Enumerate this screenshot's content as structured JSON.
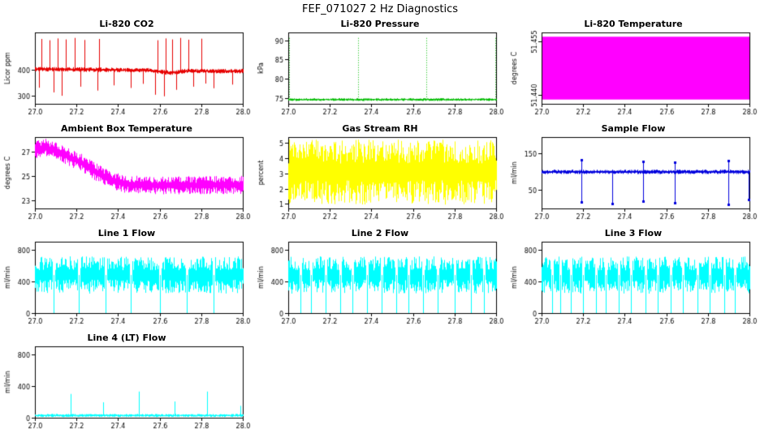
{
  "figure_title": "FEF_071027  2 Hz Diagnostics",
  "x_axis": {
    "lim": [
      27.0,
      28.0
    ],
    "ticks": [
      "27.0",
      "27.2",
      "27.4",
      "27.6",
      "27.8",
      "28.0"
    ]
  },
  "chart_data": [
    {
      "type": "line",
      "title": "Li-820 CO2",
      "ylabel": "Licor ppm",
      "color": "#e60000",
      "ylim": [
        270,
        545
      ],
      "yticks": [
        "300",
        "400"
      ],
      "series": {
        "trend": [
          [
            27.0,
            404
          ],
          [
            27.55,
            399
          ],
          [
            27.65,
            389
          ],
          [
            27.72,
            396
          ],
          [
            28.0,
            396
          ]
        ],
        "noise": 9,
        "spikes": [
          [
            27.03,
            520
          ],
          [
            27.07,
            515
          ],
          [
            27.11,
            522
          ],
          [
            27.15,
            518
          ],
          [
            27.19,
            524
          ],
          [
            27.24,
            516
          ],
          [
            27.31,
            520
          ],
          [
            27.59,
            515
          ],
          [
            27.63,
            522
          ],
          [
            27.66,
            518
          ],
          [
            27.7,
            524
          ],
          [
            27.74,
            517
          ],
          [
            27.8,
            521
          ],
          [
            27.02,
            332
          ],
          [
            27.09,
            314
          ],
          [
            27.13,
            301
          ],
          [
            27.22,
            336
          ],
          [
            27.3,
            321
          ],
          [
            27.38,
            341
          ],
          [
            27.46,
            331
          ],
          [
            27.52,
            347
          ],
          [
            27.58,
            305
          ],
          [
            27.62,
            299
          ],
          [
            27.68,
            324
          ],
          [
            27.76,
            336
          ],
          [
            27.82,
            348
          ],
          [
            27.86,
            330
          ],
          [
            27.95,
            344
          ]
        ]
      }
    },
    {
      "type": "line",
      "title": "Li-820 Pressure",
      "ylabel": "kPa",
      "color": "#00bb00",
      "ylim": [
        73.5,
        92
      ],
      "yticks": [
        "75",
        "80",
        "85",
        "90"
      ],
      "series": {
        "trend": [
          [
            27.0,
            74.6
          ]
        ],
        "noise": 0.35,
        "spike_dash": true,
        "spikes": [
          [
            27.005,
            91
          ],
          [
            27.335,
            91
          ],
          [
            27.665,
            91
          ],
          [
            27.995,
            91
          ]
        ]
      }
    },
    {
      "type": "line",
      "title": "Li-820 Temperature",
      "ylabel": "degrees C",
      "color": "#ff00ff",
      "ylim": [
        51.4375,
        51.4575
      ],
      "yticks": [
        "51.440",
        "51.455"
      ],
      "series": {
        "solid": true,
        "trend": [
          [
            27.0,
            51.4475
          ]
        ],
        "noise": 0.0088
      }
    },
    {
      "type": "line",
      "title": "Ambient Box Temperature",
      "ylabel": "degrees C",
      "color": "#ff00ff",
      "ylim": [
        22.3,
        28.2
      ],
      "yticks": [
        "23",
        "25",
        "27"
      ],
      "series": {
        "trend": [
          [
            27.0,
            27.2
          ],
          [
            27.05,
            27.35
          ],
          [
            27.12,
            26.9
          ],
          [
            27.22,
            26.1
          ],
          [
            27.32,
            25.0
          ],
          [
            27.42,
            24.35
          ],
          [
            27.55,
            24.2
          ],
          [
            28.0,
            24.25
          ]
        ],
        "noise": 0.75
      }
    },
    {
      "type": "line",
      "title": "Gas Stream RH",
      "ylabel": "percent",
      "color": "#ffff00",
      "ylim": [
        0.7,
        5.4
      ],
      "yticks": [
        "1",
        "2",
        "3",
        "4",
        "5"
      ],
      "series": {
        "trend": [
          [
            27.0,
            3.1
          ]
        ],
        "noise": 2.15
      }
    },
    {
      "type": "line",
      "title": "Sample Flow",
      "ylabel": "ml/min",
      "color": "#0000dd",
      "ylim": [
        0,
        195
      ],
      "yticks": [
        "50",
        "150"
      ],
      "series": {
        "trend": [
          [
            27.0,
            100
          ]
        ],
        "noise": 6,
        "markers": true,
        "spikes": [
          [
            27.19,
            18
          ],
          [
            27.34,
            14
          ],
          [
            27.49,
            20
          ],
          [
            27.64,
            15
          ],
          [
            27.9,
            12
          ],
          [
            27.995,
            24
          ],
          [
            27.19,
            133
          ],
          [
            27.49,
            128
          ],
          [
            27.64,
            126
          ],
          [
            27.9,
            130
          ]
        ]
      }
    },
    {
      "type": "line",
      "title": "Line 1 Flow",
      "ylabel": "ml/min",
      "color": "#00ffff",
      "ylim": [
        0,
        900
      ],
      "yticks": [
        "0",
        "400",
        "800"
      ],
      "series": {
        "trend": [
          [
            27.0,
            480
          ]
        ],
        "noise": 235,
        "gaps": [
          27.09,
          27.21,
          27.34,
          27.46,
          27.6,
          27.73,
          27.86
        ]
      }
    },
    {
      "type": "line",
      "title": "Line 2 Flow",
      "ylabel": "ml/min",
      "color": "#00ffff",
      "ylim": [
        0,
        900
      ],
      "yticks": [
        "0",
        "400",
        "800"
      ],
      "series": {
        "trend": [
          [
            27.0,
            480
          ]
        ],
        "noise": 235,
        "gaps": [
          27.06,
          27.11,
          27.18,
          27.25,
          27.31,
          27.38,
          27.45,
          27.52,
          27.58,
          27.65,
          27.72,
          27.8,
          27.88,
          27.94
        ]
      }
    },
    {
      "type": "line",
      "title": "Line 3 Flow",
      "ylabel": "ml/min",
      "color": "#00ffff",
      "ylim": [
        0,
        900
      ],
      "yticks": [
        "0",
        "400",
        "800"
      ],
      "series": {
        "trend": [
          [
            27.0,
            480
          ]
        ],
        "noise": 235,
        "gaps": [
          27.05,
          27.09,
          27.14,
          27.2,
          27.26,
          27.31,
          27.37,
          27.43,
          27.5,
          27.56,
          27.62,
          27.68,
          27.75,
          27.81,
          27.88,
          27.93
        ]
      }
    },
    {
      "type": "line",
      "title": "Line 4 (LT) Flow",
      "ylabel": "ml/min",
      "color": "#00ffff",
      "ylim": [
        0,
        900
      ],
      "yticks": [
        "0",
        "400",
        "800"
      ],
      "series": {
        "trend": [
          [
            27.0,
            28
          ]
        ],
        "noise": 20,
        "spikes": [
          [
            27.17,
            300
          ],
          [
            27.33,
            195
          ],
          [
            27.5,
            330
          ],
          [
            27.67,
            205
          ],
          [
            27.83,
            330
          ],
          [
            27.99,
            150
          ]
        ]
      }
    }
  ]
}
